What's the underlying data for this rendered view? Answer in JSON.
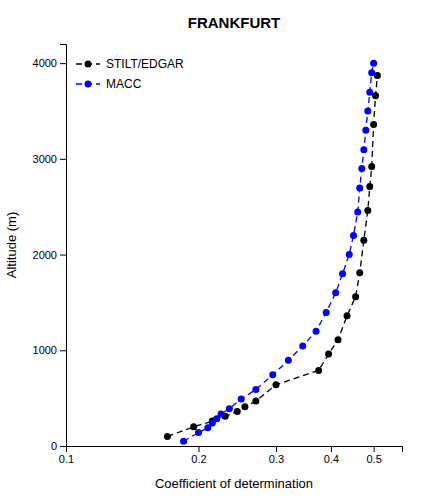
{
  "chart_data": {
    "type": "line",
    "title": "FRANKFURT",
    "xlabel": "Coefficient of determination",
    "ylabel": "Altitude (m)",
    "log": "x",
    "xlim": [
      0.1,
      0.58
    ],
    "xticks": [
      0.1,
      0.2,
      0.3,
      0.4,
      0.5
    ],
    "ylim": [
      0,
      4200
    ],
    "yticks": [
      0,
      1000,
      2000,
      3000,
      4000
    ],
    "grid": false,
    "legend": "upper left",
    "series": [
      {
        "name": "STILT/EDGAR",
        "color": "#000000",
        "marker": "circle",
        "line_style": "dashed",
        "x": [
          0.17,
          0.195,
          0.215,
          0.23,
          0.245,
          0.255,
          0.27,
          0.3,
          0.375,
          0.395,
          0.415,
          0.435,
          0.455,
          0.465,
          0.475,
          0.485,
          0.49,
          0.495,
          0.5,
          0.505,
          0.51
        ],
        "values": [
          100,
          200,
          260,
          310,
          360,
          410,
          470,
          640,
          790,
          960,
          1110,
          1360,
          1560,
          1810,
          2150,
          2460,
          2710,
          2920,
          3360,
          3660,
          3870
        ]
      },
      {
        "name": "MACC",
        "color": "#0000ff",
        "marker": "circle",
        "line_style": "dashed",
        "x": [
          0.185,
          0.2,
          0.21,
          0.215,
          0.22,
          0.225,
          0.235,
          0.25,
          0.27,
          0.295,
          0.32,
          0.345,
          0.37,
          0.39,
          0.41,
          0.425,
          0.44,
          0.45,
          0.46,
          0.465,
          0.47,
          0.475,
          0.48,
          0.485,
          0.49,
          0.495,
          0.5
        ],
        "values": [
          50,
          140,
          190,
          240,
          285,
          335,
          390,
          490,
          590,
          745,
          895,
          1045,
          1200,
          1395,
          1600,
          1800,
          2000,
          2200,
          2445,
          2695,
          2900,
          3095,
          3300,
          3500,
          3695,
          3900,
          4000
        ]
      }
    ]
  }
}
